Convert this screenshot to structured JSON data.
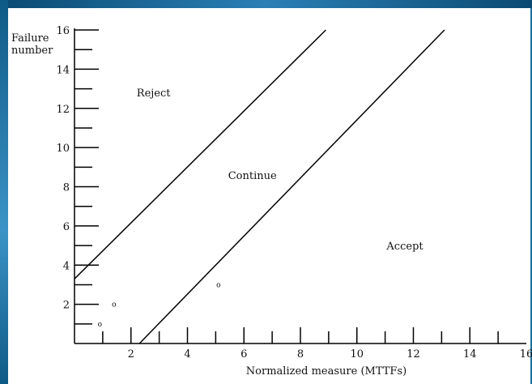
{
  "chart_data": {
    "type": "line",
    "xlabel": "Normalized measure (MTTFs)",
    "ylabel_line1": "Failure",
    "ylabel_line2": "number",
    "xlim": [
      0,
      16
    ],
    "ylim": [
      0,
      16
    ],
    "x_major_ticks": [
      0,
      2,
      4,
      6,
      8,
      10,
      12,
      14,
      16
    ],
    "y_major_ticks": [
      0,
      2,
      4,
      6,
      8,
      10,
      12,
      14,
      16
    ],
    "x_tick_labels": [
      "2",
      "4",
      "6",
      "8",
      "10",
      "12",
      "14",
      "16"
    ],
    "y_tick_labels": [
      "2",
      "4",
      "6",
      "8",
      "10",
      "12",
      "14",
      "16"
    ],
    "series": [
      {
        "x": [
          0,
          8.9
        ],
        "y": [
          3.3,
          16
        ]
      },
      {
        "x": [
          2.3,
          13.1
        ],
        "y": [
          0,
          16
        ]
      }
    ],
    "points": [
      {
        "x": 0.9,
        "y": 1,
        "label": "o"
      },
      {
        "x": 1.4,
        "y": 2,
        "label": "o"
      },
      {
        "x": 5.1,
        "y": 3,
        "label": "o"
      }
    ],
    "annotations": [
      {
        "text": "Reject",
        "x": 2.8,
        "y": 12.6
      },
      {
        "text": "Continue",
        "x": 6.3,
        "y": 8.4
      },
      {
        "text": "Accept",
        "x": 11.7,
        "y": 4.8
      }
    ],
    "grid": false
  }
}
